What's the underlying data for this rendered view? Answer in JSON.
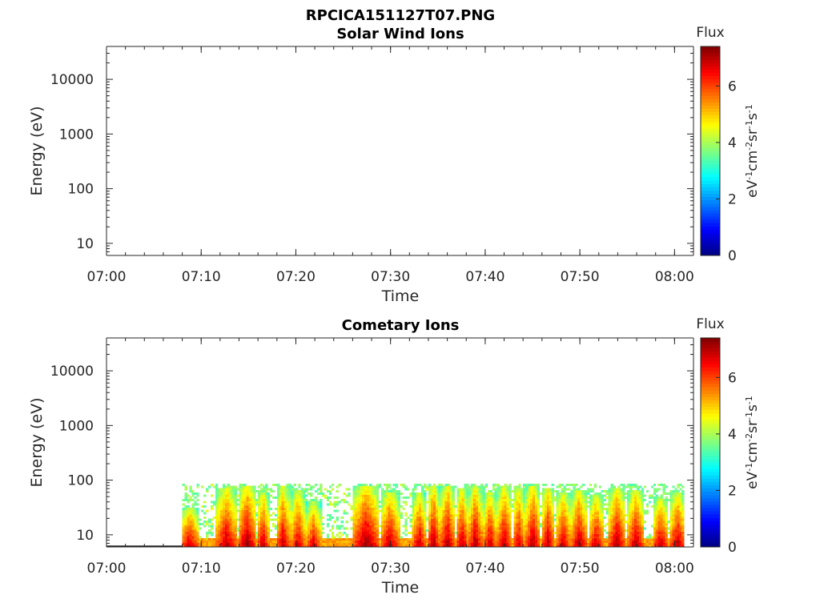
{
  "figure_title": "RPCICA151127T07.PNG",
  "chart_data": [
    {
      "type": "heatmap",
      "title": "Solar Wind Ions",
      "xlabel": "Time",
      "ylabel": "Energy (eV)",
      "x_ticks": [
        "07:00",
        "07:10",
        "07:20",
        "07:30",
        "07:40",
        "07:50",
        "08:00"
      ],
      "x_range": [
        "07:00",
        "08:02"
      ],
      "y_scale": "log",
      "y_ticks": [
        10,
        100,
        1000,
        10000
      ],
      "y_range": [
        6,
        40000
      ],
      "colorbar": {
        "title": "Flux",
        "label": "eV-1cm-2sr-1s-1",
        "label_parts": [
          "eV",
          "-1",
          "cm",
          "-2",
          "sr",
          "-1",
          "s",
          "-1"
        ],
        "ticks": [
          0,
          2,
          4,
          6
        ],
        "range": [
          0,
          7.4
        ],
        "colormap": "jet"
      },
      "data_description_empty": true,
      "bands": []
    },
    {
      "type": "heatmap",
      "title": "Cometary Ions",
      "xlabel": "Time",
      "ylabel": "Energy (eV)",
      "x_ticks": [
        "07:00",
        "07:10",
        "07:20",
        "07:30",
        "07:40",
        "07:50",
        "08:00"
      ],
      "x_range": [
        "07:00",
        "08:02"
      ],
      "y_scale": "log",
      "y_ticks": [
        10,
        100,
        1000,
        10000
      ],
      "y_range": [
        6,
        40000
      ],
      "colorbar": {
        "title": "Flux",
        "label": "eV-1cm-2sr-1s-1",
        "label_parts": [
          "eV",
          "-1",
          "cm",
          "-2",
          "sr",
          "-1",
          "s",
          "-1"
        ],
        "ticks": [
          0,
          2,
          4,
          6
        ],
        "range": [
          0,
          7.4
        ],
        "colormap": "jet"
      },
      "data_start": "07:08",
      "data_end": "08:01",
      "max_energy": 80,
      "baseline_flux": 5.0,
      "bands": [
        {
          "start": 7.7,
          "end": 9.6,
          "top": 30,
          "peak": 7.0
        },
        {
          "start": 11.5,
          "end": 13.6,
          "top": 70,
          "peak": 7.1
        },
        {
          "start": 13.8,
          "end": 15.6,
          "top": 75,
          "peak": 7.3
        },
        {
          "start": 15.8,
          "end": 17.0,
          "top": 60,
          "peak": 7.0
        },
        {
          "start": 17.8,
          "end": 19.3,
          "top": 75,
          "peak": 7.0
        },
        {
          "start": 19.4,
          "end": 20.8,
          "top": 65,
          "peak": 6.9
        },
        {
          "start": 21.0,
          "end": 22.5,
          "top": 40,
          "peak": 6.8
        },
        {
          "start": 26.0,
          "end": 28.6,
          "top": 78,
          "peak": 7.3
        },
        {
          "start": 28.8,
          "end": 30.8,
          "top": 55,
          "peak": 7.1
        },
        {
          "start": 32.2,
          "end": 33.6,
          "top": 55,
          "peak": 7.0
        },
        {
          "start": 33.8,
          "end": 35.0,
          "top": 75,
          "peak": 7.2
        },
        {
          "start": 35.2,
          "end": 36.6,
          "top": 78,
          "peak": 7.2
        },
        {
          "start": 36.8,
          "end": 38.0,
          "top": 70,
          "peak": 7.1
        },
        {
          "start": 38.2,
          "end": 39.5,
          "top": 75,
          "peak": 7.2
        },
        {
          "start": 39.7,
          "end": 41.0,
          "top": 60,
          "peak": 7.0
        },
        {
          "start": 41.2,
          "end": 42.6,
          "top": 75,
          "peak": 7.1
        },
        {
          "start": 42.8,
          "end": 44.0,
          "top": 70,
          "peak": 7.0
        },
        {
          "start": 44.2,
          "end": 45.6,
          "top": 78,
          "peak": 7.2
        },
        {
          "start": 45.8,
          "end": 47.2,
          "top": 70,
          "peak": 7.1
        },
        {
          "start": 47.4,
          "end": 48.8,
          "top": 60,
          "peak": 7.0
        },
        {
          "start": 49.0,
          "end": 50.6,
          "top": 65,
          "peak": 7.1
        },
        {
          "start": 50.8,
          "end": 52.4,
          "top": 50,
          "peak": 7.0
        },
        {
          "start": 53.0,
          "end": 54.6,
          "top": 70,
          "peak": 7.2
        },
        {
          "start": 55.0,
          "end": 56.6,
          "top": 65,
          "peak": 7.1
        },
        {
          "start": 57.6,
          "end": 59.2,
          "top": 45,
          "peak": 7.0
        },
        {
          "start": 59.4,
          "end": 61.0,
          "top": 55,
          "peak": 7.1
        }
      ]
    }
  ]
}
